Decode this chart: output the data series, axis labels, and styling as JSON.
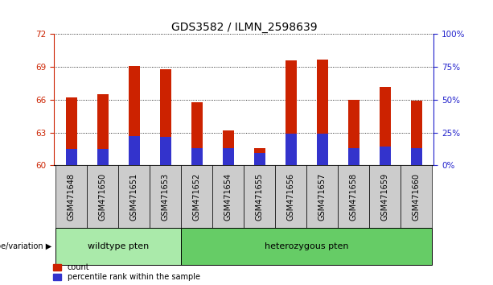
{
  "title": "GDS3582 / ILMN_2598639",
  "samples": [
    "GSM471648",
    "GSM471650",
    "GSM471651",
    "GSM471653",
    "GSM471652",
    "GSM471654",
    "GSM471655",
    "GSM471656",
    "GSM471657",
    "GSM471658",
    "GSM471659",
    "GSM471660"
  ],
  "count_values": [
    66.2,
    66.5,
    69.1,
    68.8,
    65.8,
    63.2,
    61.6,
    69.6,
    69.7,
    66.0,
    67.2,
    65.9
  ],
  "percentile_values": [
    61.5,
    61.5,
    62.7,
    62.6,
    61.6,
    61.6,
    61.1,
    62.9,
    62.9,
    61.6,
    61.7,
    61.6
  ],
  "ymin": 60,
  "ymax": 72,
  "yticks_left": [
    60,
    63,
    66,
    69,
    72
  ],
  "yticks_right": [
    0,
    25,
    50,
    75,
    100
  ],
  "bar_color": "#cc2200",
  "percentile_color": "#3333cc",
  "bar_width": 0.35,
  "wildtype_color": "#aaeaaa",
  "hetero_color": "#66cc66",
  "sample_box_color": "#cccccc",
  "groups": [
    {
      "label": "wildtype pten",
      "start": 0,
      "end": 3,
      "color": "#aaeaaa"
    },
    {
      "label": "heterozygous pten",
      "start": 4,
      "end": 11,
      "color": "#66cc66"
    }
  ],
  "genotype_label": "genotype/variation",
  "legend_count_label": "count",
  "legend_percentile_label": "percentile rank within the sample",
  "title_fontsize": 10,
  "tick_fontsize": 7.5,
  "sample_fontsize": 7,
  "group_fontsize": 8
}
